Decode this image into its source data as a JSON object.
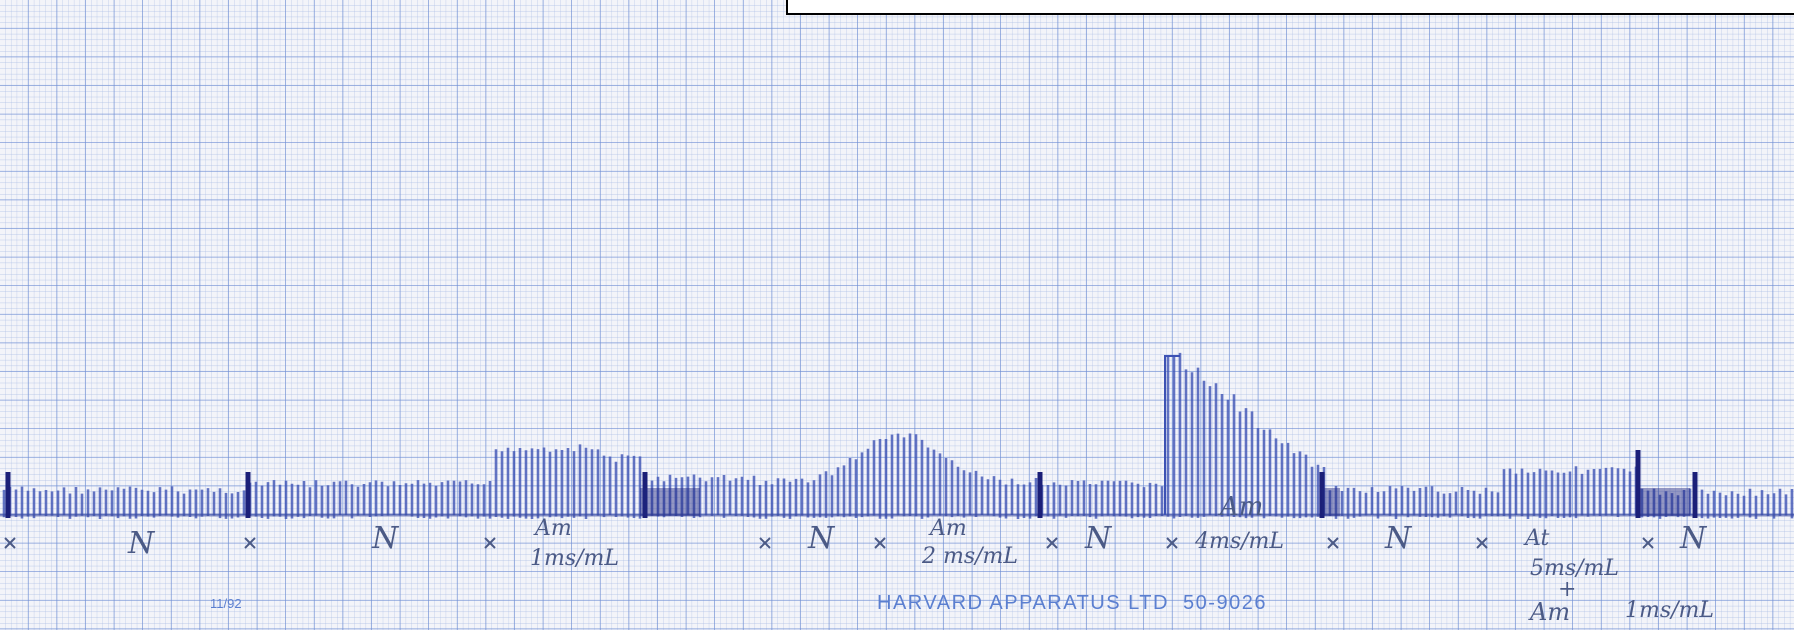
{
  "annotations": [
    {
      "text": "N"
    },
    {
      "text": "N"
    },
    {
      "text": "Am"
    },
    {
      "text": "1ms/mL"
    },
    {
      "text": "N"
    },
    {
      "text": "Am"
    },
    {
      "text": "2 ms/mL"
    },
    {
      "text": "N"
    },
    {
      "text": "Am"
    },
    {
      "text": "4ms/mL"
    },
    {
      "text": "N"
    },
    {
      "text": "At"
    },
    {
      "text": "5ms/mL"
    },
    {
      "text": "+"
    },
    {
      "text": "Am"
    },
    {
      "text": "1ms/mL"
    },
    {
      "text": "N"
    }
  ],
  "footer": {
    "date": "11/92",
    "maker": "HARVARD APPARATUS LTD  50-9026"
  }
}
